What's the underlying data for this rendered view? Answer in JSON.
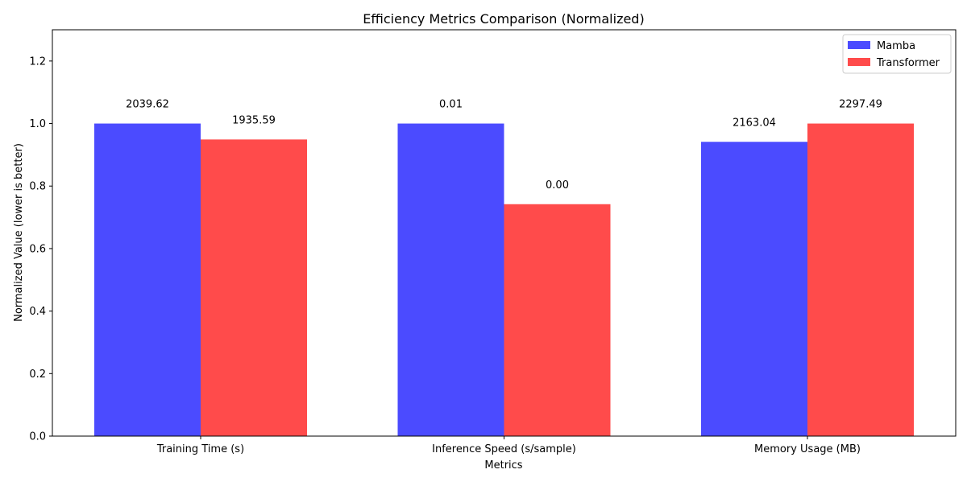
{
  "chart_data": {
    "type": "bar",
    "title": "Efficiency Metrics Comparison (Normalized)",
    "xlabel": "Metrics",
    "ylabel": "Normalized Value (lower is better)",
    "ylim": [
      0,
      1.3
    ],
    "yticks": [
      0.0,
      0.2,
      0.4,
      0.6,
      0.8,
      1.0,
      1.2
    ],
    "ytick_labels": [
      "0.0",
      "0.2",
      "0.4",
      "0.6",
      "0.8",
      "1.0",
      "1.2"
    ],
    "grid": false,
    "legend_position": "top-right",
    "categories": [
      "Training Time (s)",
      "Inference Speed (s/sample)",
      "Memory Usage (MB)"
    ],
    "series": [
      {
        "name": "Mamba",
        "color": "#4b4bff",
        "values": [
          1.0,
          1.0,
          0.9415
        ],
        "labels": [
          "2039.62",
          "0.01",
          "2163.04"
        ]
      },
      {
        "name": "Transformer",
        "color": "#ff4b4b",
        "values": [
          0.949,
          0.742,
          1.0
        ],
        "labels": [
          "1935.59",
          "0.00",
          "2297.49"
        ]
      }
    ]
  }
}
